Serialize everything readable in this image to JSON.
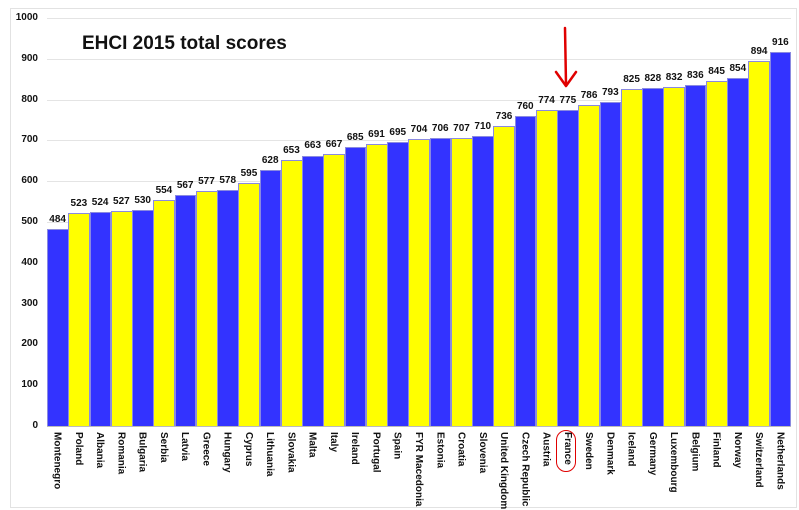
{
  "chart_data": {
    "type": "bar",
    "title": "EHCI 2015 total scores",
    "xlabel": "",
    "ylabel": "",
    "ylim": [
      0,
      1000
    ],
    "yticks": [
      0,
      100,
      200,
      300,
      400,
      500,
      600,
      700,
      800,
      900,
      1000
    ],
    "grid": true,
    "legend": null,
    "categories": [
      "Montenegro",
      "Poland",
      "Albania",
      "Romania",
      "Bulgaria",
      "Serbia",
      "Latvia",
      "Greece",
      "Hungary",
      "Cyprus",
      "Lithuania",
      "Slovakia",
      "Malta",
      "Italy",
      "Ireland",
      "Portugal",
      "Spain",
      "FYR Macedonia",
      "Estonia",
      "Croatia",
      "Slovenia",
      "United Kingdom",
      "Czech Republic",
      "Austria",
      "France",
      "Sweden",
      "Denmark",
      "Iceland",
      "Germany",
      "Luxembourg",
      "Belgium",
      "Finland",
      "Norway",
      "Switzerland",
      "Netherlands"
    ],
    "values": [
      484,
      523,
      524,
      527,
      530,
      554,
      567,
      577,
      578,
      595,
      628,
      653,
      663,
      667,
      685,
      691,
      695,
      704,
      706,
      707,
      710,
      736,
      760,
      774,
      775,
      786,
      793,
      825,
      828,
      832,
      836,
      845,
      854,
      894,
      916
    ],
    "colors": {
      "odd": "#3333ff",
      "even": "#ffff00"
    },
    "annotations": [
      {
        "type": "arrow",
        "target": "France",
        "color": "#e00000"
      },
      {
        "type": "circle",
        "target": "France",
        "color": "#e00000"
      }
    ]
  }
}
